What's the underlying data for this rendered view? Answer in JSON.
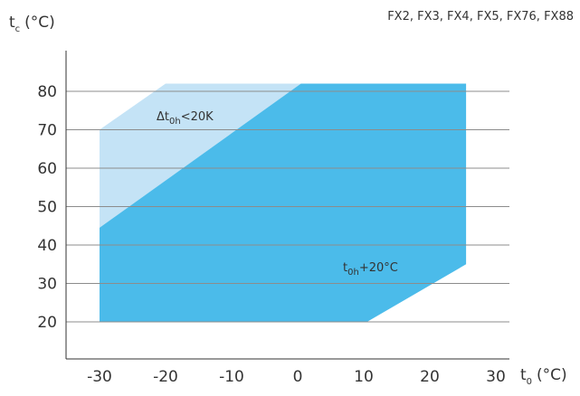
{
  "models": "FX2, FX3, FX4, FX5, FX76, FX88",
  "chart_data": {
    "type": "area",
    "y_label": {
      "main": "t",
      "sub": "c",
      "unit": "(°C)"
    },
    "x_label": {
      "main": "t",
      "sub": "0",
      "unit": "(°C)"
    },
    "x_ticks": [
      -30,
      -20,
      -10,
      0,
      10,
      20,
      30
    ],
    "y_ticks": [
      20,
      30,
      40,
      50,
      60,
      70,
      80
    ],
    "xlim": [
      -35,
      32
    ],
    "ylim": [
      12,
      93
    ],
    "grid": "horizontal",
    "regions": [
      {
        "label_main": "Δt",
        "label_sub": "0h",
        "label_rest": "<20K",
        "color": "#c4e3f6",
        "points": [
          [
            -30,
            70
          ],
          [
            -20,
            82
          ],
          [
            0.5,
            82
          ],
          [
            -30,
            44.5
          ]
        ]
      },
      {
        "label_main": "t",
        "label_sub": "0h",
        "label_rest": "+20°C",
        "color": "#4bbbea",
        "points": [
          [
            -30,
            44.5
          ],
          [
            0.5,
            82
          ],
          [
            25.5,
            82
          ],
          [
            25.5,
            35
          ],
          [
            10.5,
            20
          ],
          [
            -30,
            20
          ]
        ]
      }
    ]
  }
}
